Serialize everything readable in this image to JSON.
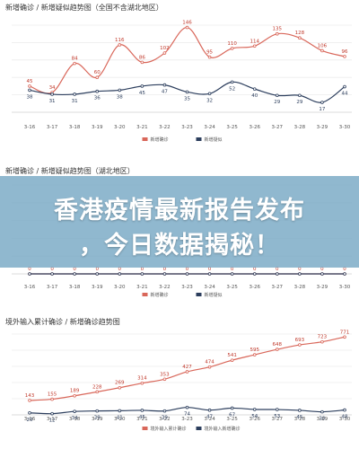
{
  "headline": {
    "line1": "香港疫情最新报告发布",
    "line2": "，今日数据揭秘！"
  },
  "chart_data": [
    {
      "type": "line",
      "title": "新增确诊 / 新增疑似趋势图（全国不含湖北地区）",
      "categories": [
        "3-16",
        "3-17",
        "3-18",
        "3-19",
        "3-20",
        "3-21",
        "3-22",
        "3-23",
        "3-24",
        "3-25",
        "3-26",
        "3-27",
        "3-28",
        "3-29",
        "3-30"
      ],
      "ylim": [
        0,
        150
      ],
      "yticks": [
        "",
        "",
        "",
        "",
        ""
      ],
      "grid": true,
      "legend_position": "bottom",
      "series": [
        {
          "name": "新增确诊",
          "color": "#d9675a",
          "values": [
            45,
            34,
            84,
            60,
            116,
            86,
            102,
            146,
            95,
            110,
            114,
            135,
            128,
            106,
            96
          ],
          "labels": [
            "45",
            "34",
            "84",
            "60",
            "116",
            "86",
            "102",
            "146",
            "95",
            "110",
            "114",
            "135",
            "128",
            "106",
            "96"
          ]
        },
        {
          "name": "新增疑似",
          "color": "#2c3e5d",
          "values": [
            38,
            31,
            31,
            36,
            38,
            45,
            47,
            35,
            32,
            52,
            40,
            29,
            29,
            17,
            44
          ],
          "labels": [
            "38",
            "31",
            "31",
            "36",
            "38",
            "45",
            "47",
            "35",
            "32",
            "52",
            "40",
            "29",
            "29",
            "17",
            "44"
          ]
        }
      ]
    },
    {
      "type": "line",
      "title": "新增确诊 / 新增疑似趋势图（湖北地区）",
      "categories": [
        "3-16",
        "3-17",
        "3-18",
        "3-19",
        "3-20",
        "3-21",
        "3-22",
        "3-23",
        "3-24",
        "3-25",
        "3-26",
        "3-27",
        "3-28",
        "3-29",
        "3-30"
      ],
      "ylim": [
        0,
        20
      ],
      "grid": true,
      "legend_position": "bottom",
      "series": [
        {
          "name": "新增确诊",
          "color": "#d9675a",
          "values": [
            0,
            0,
            0,
            0,
            0,
            0,
            0,
            0,
            0,
            0,
            0,
            0,
            0,
            0,
            0
          ],
          "labels": [
            "0",
            "0",
            "0",
            "0",
            "0",
            "0",
            "0",
            "0",
            "0",
            "0",
            "0",
            "0",
            "0",
            "0",
            "0"
          ]
        },
        {
          "name": "新增疑似",
          "color": "#2c3e5d",
          "values": [
            0,
            0,
            0,
            0,
            0,
            0,
            0,
            0,
            0,
            0,
            0,
            0,
            0,
            0,
            0
          ],
          "labels": []
        }
      ]
    },
    {
      "type": "line",
      "title": "境外输入累计确诊 / 新增确诊趋势图",
      "categories": [
        "3-16",
        "3-17",
        "3-18",
        "3-19",
        "3-20",
        "3-21",
        "3-22",
        "3-23",
        "3-24",
        "3-25",
        "3-26",
        "3-27",
        "3-28",
        "3-29",
        "3-30"
      ],
      "ylim": [
        0,
        800
      ],
      "grid": true,
      "legend_position": "bottom",
      "series": [
        {
          "name": "境外输入累计确诊",
          "color": "#d9675a",
          "values": [
            143,
            155,
            189,
            228,
            269,
            314,
            353,
            427,
            474,
            541,
            595,
            648,
            693,
            723,
            771
          ],
          "labels": [
            "143",
            "155",
            "189",
            "228",
            "269",
            "314",
            "353",
            "427",
            "474",
            "541",
            "595",
            "648",
            "693",
            "723",
            "771"
          ]
        },
        {
          "name": "境外输入新增确诊",
          "color": "#2c3e5d",
          "values": [
            20,
            12,
            34,
            39,
            41,
            45,
            39,
            74,
            47,
            67,
            54,
            53,
            45,
            30,
            48
          ],
          "labels": [
            "20",
            "12",
            "34",
            "39",
            "41",
            "45",
            "39",
            "74",
            "47",
            "67",
            "54",
            "53",
            "45",
            "30",
            "48"
          ]
        }
      ]
    }
  ]
}
